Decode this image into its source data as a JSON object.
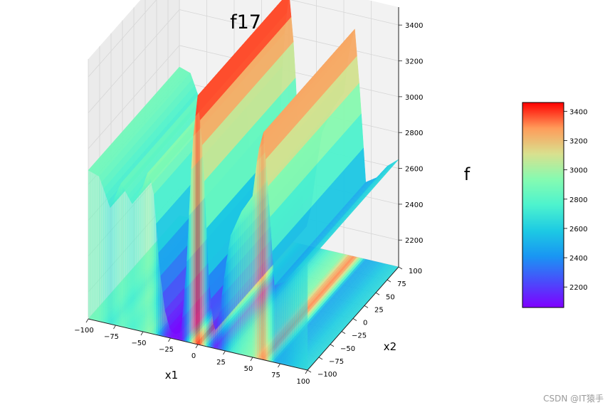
{
  "chart_data": {
    "type": "surface3d",
    "title": "f17",
    "xlabel": "x1",
    "ylabel": "x2",
    "zlabel": "f",
    "x_ticks": [
      "−100",
      "−75",
      "−50",
      "−25",
      "0",
      "25",
      "50",
      "75",
      "100"
    ],
    "y_ticks": [
      "−100",
      "−75",
      "−50",
      "−25",
      "0",
      "25",
      "50",
      "75",
      "100"
    ],
    "z_ticks": [
      "2200",
      "2400",
      "2600",
      "2800",
      "3000",
      "3200",
      "3400"
    ],
    "colorbar_ticks": [
      "2200",
      "2400",
      "2600",
      "2800",
      "3000",
      "3200",
      "3400"
    ],
    "xlim": [
      -100,
      100
    ],
    "ylim": [
      -100,
      100
    ],
    "zlim": [
      2050,
      3500
    ],
    "colormap": "rainbow",
    "contour_projection": "bottom plane",
    "profile_along_x1": {
      "x1": [
        -100,
        -90,
        -80,
        -70,
        -60,
        -50,
        -45,
        -40,
        -35,
        -30,
        -25,
        -20,
        -15,
        -10,
        -5,
        0,
        5,
        10,
        15,
        20,
        25,
        30,
        40,
        50,
        55,
        60,
        65,
        70,
        80,
        90,
        100
      ],
      "f": [
        2880,
        2860,
        2700,
        2850,
        2750,
        2860,
        2960,
        2830,
        2430,
        2200,
        2090,
        2080,
        2100,
        2500,
        3150,
        3440,
        3100,
        2450,
        2130,
        2260,
        2500,
        2700,
        2850,
        2950,
        3200,
        3320,
        2950,
        2480,
        2520,
        2600,
        2650
      ]
    }
  },
  "watermark": "CSDN @IT猿手"
}
